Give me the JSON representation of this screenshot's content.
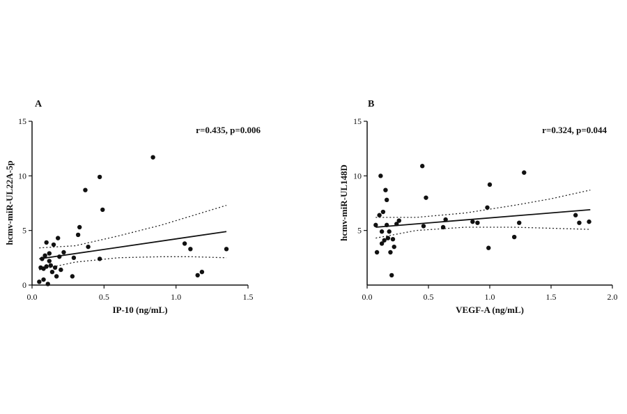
{
  "chart_data": [
    {
      "panel": "A",
      "type": "scatter",
      "annotation": "r=0.435, p=0.006",
      "xlabel": "IP-10 (ng/mL)",
      "ylabel": "hcmv-miR-UL22A-5p",
      "xlim": [
        0,
        1.5
      ],
      "ylim": [
        0,
        15
      ],
      "x_ticks": [
        "0.0",
        "0.5",
        "1.0",
        "1.5"
      ],
      "y_ticks": [
        "0",
        "5",
        "10",
        "15"
      ],
      "points": [
        [
          0.05,
          0.3
        ],
        [
          0.06,
          1.6
        ],
        [
          0.07,
          2.4
        ],
        [
          0.08,
          1.5
        ],
        [
          0.08,
          0.5
        ],
        [
          0.09,
          2.7
        ],
        [
          0.1,
          3.9
        ],
        [
          0.1,
          1.7
        ],
        [
          0.11,
          0.1
        ],
        [
          0.12,
          2.9
        ],
        [
          0.12,
          2.2
        ],
        [
          0.13,
          1.8
        ],
        [
          0.14,
          1.2
        ],
        [
          0.15,
          3.7
        ],
        [
          0.16,
          1.6
        ],
        [
          0.17,
          0.8
        ],
        [
          0.18,
          4.3
        ],
        [
          0.19,
          2.6
        ],
        [
          0.2,
          1.4
        ],
        [
          0.22,
          3.0
        ],
        [
          0.28,
          0.8
        ],
        [
          0.29,
          2.5
        ],
        [
          0.32,
          4.6
        ],
        [
          0.33,
          5.3
        ],
        [
          0.37,
          8.7
        ],
        [
          0.39,
          3.5
        ],
        [
          0.47,
          9.9
        ],
        [
          0.47,
          2.4
        ],
        [
          0.49,
          6.9
        ],
        [
          0.84,
          11.7
        ],
        [
          1.06,
          3.8
        ],
        [
          1.1,
          3.3
        ],
        [
          1.15,
          0.9
        ],
        [
          1.18,
          1.2
        ],
        [
          1.35,
          3.3
        ]
      ],
      "fit": {
        "x": [
          0.05,
          1.35
        ],
        "y": [
          2.4,
          4.9
        ]
      },
      "ci_upper": {
        "x": [
          0.05,
          0.3,
          0.6,
          0.9,
          1.1,
          1.35
        ],
        "y": [
          3.4,
          3.6,
          4.5,
          5.5,
          6.3,
          7.3
        ]
      },
      "ci_lower": {
        "x": [
          0.05,
          0.3,
          0.6,
          0.9,
          1.1,
          1.35
        ],
        "y": [
          1.4,
          2.1,
          2.5,
          2.6,
          2.6,
          2.5
        ]
      }
    },
    {
      "panel": "B",
      "type": "scatter",
      "annotation": "r=0.324, p=0.044",
      "xlabel": "VEGF-A  (ng/mL)",
      "ylabel": "hcmv-miR-UL148D",
      "xlim": [
        0,
        2.0
      ],
      "ylim": [
        0,
        15
      ],
      "x_ticks": [
        "0.0",
        "0.5",
        "1.0",
        "1.5",
        "2.0"
      ],
      "y_ticks": [
        "5",
        "10",
        "15"
      ],
      "points": [
        [
          0.07,
          5.5
        ],
        [
          0.08,
          3.0
        ],
        [
          0.1,
          6.4
        ],
        [
          0.11,
          10.0
        ],
        [
          0.12,
          4.9
        ],
        [
          0.12,
          3.8
        ],
        [
          0.13,
          6.7
        ],
        [
          0.14,
          4.1
        ],
        [
          0.15,
          8.7
        ],
        [
          0.16,
          7.8
        ],
        [
          0.16,
          5.5
        ],
        [
          0.17,
          4.3
        ],
        [
          0.18,
          4.9
        ],
        [
          0.19,
          3.0
        ],
        [
          0.2,
          0.9
        ],
        [
          0.21,
          4.2
        ],
        [
          0.22,
          3.5
        ],
        [
          0.24,
          5.6
        ],
        [
          0.26,
          5.9
        ],
        [
          0.45,
          10.9
        ],
        [
          0.46,
          5.4
        ],
        [
          0.48,
          8.0
        ],
        [
          0.62,
          5.3
        ],
        [
          0.64,
          6.0
        ],
        [
          0.86,
          5.8
        ],
        [
          0.9,
          5.7
        ],
        [
          0.98,
          7.1
        ],
        [
          0.99,
          3.4
        ],
        [
          1.0,
          9.2
        ],
        [
          1.2,
          4.4
        ],
        [
          1.24,
          5.7
        ],
        [
          1.28,
          10.3
        ],
        [
          1.7,
          6.4
        ],
        [
          1.73,
          5.7
        ],
        [
          1.81,
          5.8
        ]
      ],
      "fit": {
        "x": [
          0.07,
          1.82
        ],
        "y": [
          5.3,
          6.9
        ]
      },
      "ci_upper": {
        "x": [
          0.07,
          0.4,
          0.8,
          1.2,
          1.5,
          1.82
        ],
        "y": [
          6.2,
          6.2,
          6.6,
          7.3,
          7.9,
          8.7
        ]
      },
      "ci_lower": {
        "x": [
          0.07,
          0.4,
          0.8,
          1.2,
          1.5,
          1.82
        ],
        "y": [
          4.3,
          5.0,
          5.3,
          5.3,
          5.2,
          5.1
        ]
      }
    }
  ]
}
